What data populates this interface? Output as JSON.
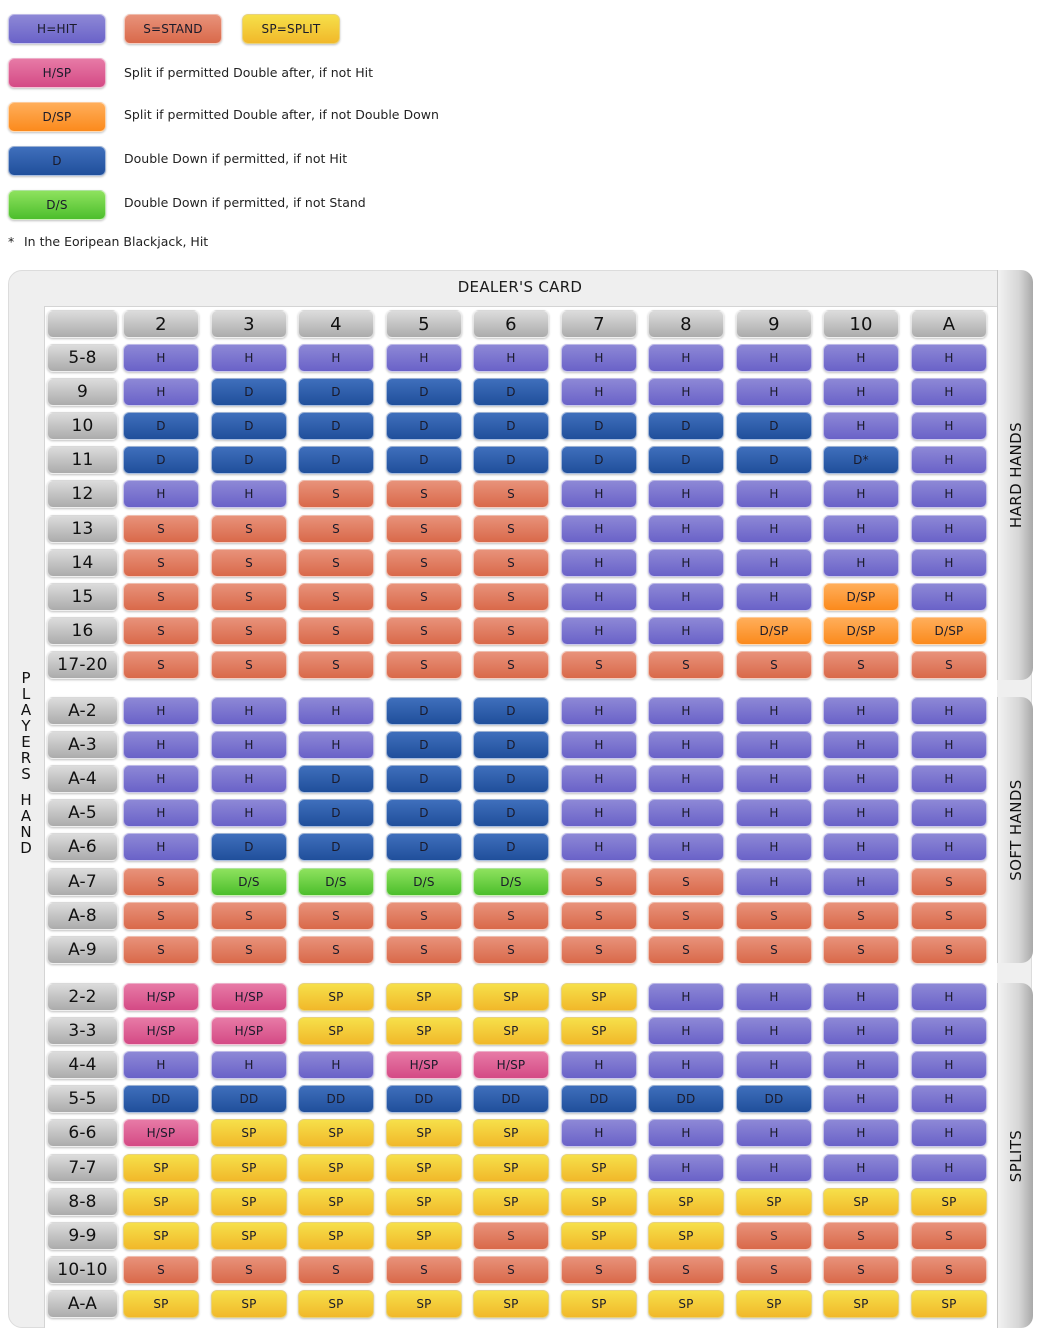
{
  "legend": {
    "top_row": [
      {
        "code": "H",
        "label": "H=HIT",
        "color": "#7a74cf"
      },
      {
        "code": "S",
        "label": "S=STAND",
        "color": "#e07c60"
      },
      {
        "code": "SP",
        "label": "SP=SPLIT",
        "color": "#f4cb36"
      }
    ],
    "rows": [
      {
        "code": "HSP",
        "label": "H/SP",
        "description": "Split if permitted Double after, if not Hit",
        "color": "#dc5f94"
      },
      {
        "code": "DSP",
        "label": "D/SP",
        "description": "Split if permitted Double after, if not Double Down",
        "color": "#fd9a36"
      },
      {
        "code": "D",
        "label": "D",
        "description": "Double Down if permitted, if not Hit",
        "color": "#2f5fac"
      },
      {
        "code": "DS",
        "label": "D/S",
        "description": "Double Down if permitted, if not Stand",
        "color": "#6ccf44"
      }
    ],
    "footnote": {
      "marker": "*",
      "text": "In the Eoripean Blackjack, Hit"
    }
  },
  "chart": {
    "title": "DEALER'S CARD",
    "players_hand_label": "PLAYERS HAND",
    "dealer_cards": [
      "2",
      "3",
      "4",
      "5",
      "6",
      "7",
      "8",
      "9",
      "10",
      "A"
    ],
    "sections": [
      {
        "name": "HARD HANDS",
        "rows": [
          {
            "hand": "5-8",
            "actions": [
              "H",
              "H",
              "H",
              "H",
              "H",
              "H",
              "H",
              "H",
              "H",
              "H"
            ]
          },
          {
            "hand": "9",
            "actions": [
              "H",
              "D",
              "D",
              "D",
              "D",
              "H",
              "H",
              "H",
              "H",
              "H"
            ]
          },
          {
            "hand": "10",
            "actions": [
              "D",
              "D",
              "D",
              "D",
              "D",
              "D",
              "D",
              "D",
              "H",
              "H"
            ]
          },
          {
            "hand": "11",
            "actions": [
              "D",
              "D",
              "D",
              "D",
              "D",
              "D",
              "D",
              "D",
              "D*",
              "H"
            ]
          },
          {
            "hand": "12",
            "actions": [
              "H",
              "H",
              "S",
              "S",
              "S",
              "H",
              "H",
              "H",
              "H",
              "H"
            ]
          },
          {
            "hand": "13",
            "actions": [
              "S",
              "S",
              "S",
              "S",
              "S",
              "H",
              "H",
              "H",
              "H",
              "H"
            ]
          },
          {
            "hand": "14",
            "actions": [
              "S",
              "S",
              "S",
              "S",
              "S",
              "H",
              "H",
              "H",
              "H",
              "H"
            ]
          },
          {
            "hand": "15",
            "actions": [
              "S",
              "S",
              "S",
              "S",
              "S",
              "H",
              "H",
              "H",
              "D/SP",
              "H"
            ]
          },
          {
            "hand": "16",
            "actions": [
              "S",
              "S",
              "S",
              "S",
              "S",
              "H",
              "H",
              "D/SP",
              "D/SP",
              "D/SP"
            ]
          },
          {
            "hand": "17-20",
            "actions": [
              "S",
              "S",
              "S",
              "S",
              "S",
              "S",
              "S",
              "S",
              "S",
              "S"
            ]
          }
        ]
      },
      {
        "name": "SOFT HANDS",
        "rows": [
          {
            "hand": "A-2",
            "actions": [
              "H",
              "H",
              "H",
              "D",
              "D",
              "H",
              "H",
              "H",
              "H",
              "H"
            ]
          },
          {
            "hand": "A-3",
            "actions": [
              "H",
              "H",
              "H",
              "D",
              "D",
              "H",
              "H",
              "H",
              "H",
              "H"
            ]
          },
          {
            "hand": "A-4",
            "actions": [
              "H",
              "H",
              "D",
              "D",
              "D",
              "H",
              "H",
              "H",
              "H",
              "H"
            ]
          },
          {
            "hand": "A-5",
            "actions": [
              "H",
              "H",
              "D",
              "D",
              "D",
              "H",
              "H",
              "H",
              "H",
              "H"
            ]
          },
          {
            "hand": "A-6",
            "actions": [
              "H",
              "D",
              "D",
              "D",
              "D",
              "H",
              "H",
              "H",
              "H",
              "H"
            ]
          },
          {
            "hand": "A-7",
            "actions": [
              "S",
              "D/S",
              "D/S",
              "D/S",
              "D/S",
              "S",
              "S",
              "H",
              "H",
              "S"
            ]
          },
          {
            "hand": "A-8",
            "actions": [
              "S",
              "S",
              "S",
              "S",
              "S",
              "S",
              "S",
              "S",
              "S",
              "S"
            ]
          },
          {
            "hand": "A-9",
            "actions": [
              "S",
              "S",
              "S",
              "S",
              "S",
              "S",
              "S",
              "S",
              "S",
              "S"
            ]
          }
        ]
      },
      {
        "name": "SPLITS",
        "rows": [
          {
            "hand": "2-2",
            "actions": [
              "H/SP",
              "H/SP",
              "SP",
              "SP",
              "SP",
              "SP",
              "H",
              "H",
              "H",
              "H"
            ]
          },
          {
            "hand": "3-3",
            "actions": [
              "H/SP",
              "H/SP",
              "SP",
              "SP",
              "SP",
              "SP",
              "H",
              "H",
              "H",
              "H"
            ]
          },
          {
            "hand": "4-4",
            "actions": [
              "H",
              "H",
              "H",
              "H/SP",
              "H/SP",
              "H",
              "H",
              "H",
              "H",
              "H"
            ]
          },
          {
            "hand": "5-5",
            "actions": [
              "DD",
              "DD",
              "DD",
              "DD",
              "DD",
              "DD",
              "DD",
              "DD",
              "H",
              "H"
            ]
          },
          {
            "hand": "6-6",
            "actions": [
              "H/SP",
              "SP",
              "SP",
              "SP",
              "SP",
              "H",
              "H",
              "H",
              "H",
              "H"
            ]
          },
          {
            "hand": "7-7",
            "actions": [
              "SP",
              "SP",
              "SP",
              "SP",
              "SP",
              "SP",
              "H",
              "H",
              "H",
              "H"
            ]
          },
          {
            "hand": "8-8",
            "actions": [
              "SP",
              "SP",
              "SP",
              "SP",
              "SP",
              "SP",
              "SP",
              "SP",
              "SP",
              "SP"
            ]
          },
          {
            "hand": "9-9",
            "actions": [
              "SP",
              "SP",
              "SP",
              "SP",
              "S",
              "SP",
              "SP",
              "S",
              "S",
              "S"
            ]
          },
          {
            "hand": "10-10",
            "actions": [
              "S",
              "S",
              "S",
              "S",
              "S",
              "S",
              "S",
              "S",
              "S",
              "S"
            ]
          },
          {
            "hand": "A-A",
            "actions": [
              "SP",
              "SP",
              "SP",
              "SP",
              "SP",
              "SP",
              "SP",
              "SP",
              "SP",
              "SP"
            ]
          }
        ]
      }
    ]
  }
}
